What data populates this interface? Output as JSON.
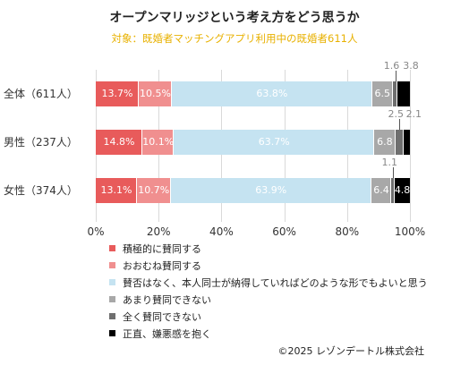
{
  "chart_data": {
    "type": "bar",
    "orientation": "horizontal",
    "stacked": true,
    "title": "オープンマリッジという考え方をどう思うか",
    "subtitle": "対象：既婚者マッチングアプリ利用中の既婚者611人",
    "categories": [
      "全体（611人）",
      "男性（237人）",
      "女性（374人）"
    ],
    "series": [
      {
        "name": "積極的に賛同する",
        "color": "#e85b5b",
        "label_color": "#ffffff",
        "values": [
          13.7,
          14.8,
          13.1
        ]
      },
      {
        "name": "おおむね賛同する",
        "color": "#f08f8f",
        "label_color": "#ffffff",
        "values": [
          10.5,
          10.1,
          10.7
        ]
      },
      {
        "name": "賛否はなく、本人同士が納得していればどのような形でもよいと思う",
        "color": "#c5e3f1",
        "label_color": "#ffffff",
        "values": [
          63.8,
          63.7,
          63.9
        ]
      },
      {
        "name": "あまり賛同できない",
        "color": "#a8a8a8",
        "label_color": "#ffffff",
        "values": [
          6.5,
          6.8,
          6.4
        ]
      },
      {
        "name": "全く賛同できない",
        "color": "#6f6f6f",
        "label_color": "#888888",
        "values": [
          1.6,
          2.5,
          1.1
        ]
      },
      {
        "name": "正直、嫌悪感を抱く",
        "color": "#000000",
        "label_color": "#ffffff",
        "values": [
          3.8,
          2.1,
          4.8
        ]
      }
    ],
    "data_labels": [
      [
        "13.7%",
        "10.5%",
        "63.8%",
        "6.5",
        "1.6",
        "3.8"
      ],
      [
        "14.8%",
        "10.1%",
        "63.7%",
        "6.8",
        "2.5",
        "2.1"
      ],
      [
        "13.1%",
        "10.7%",
        "63.9%",
        "6.4",
        "1.1",
        "4.8"
      ]
    ],
    "xlim": [
      0,
      100
    ],
    "xticks": [
      "0%",
      "20%",
      "40%",
      "60%",
      "80%",
      "100%"
    ],
    "grid": true,
    "legend_position": "bottom"
  },
  "copyright": "©2025 レゾンデートル株式会社"
}
